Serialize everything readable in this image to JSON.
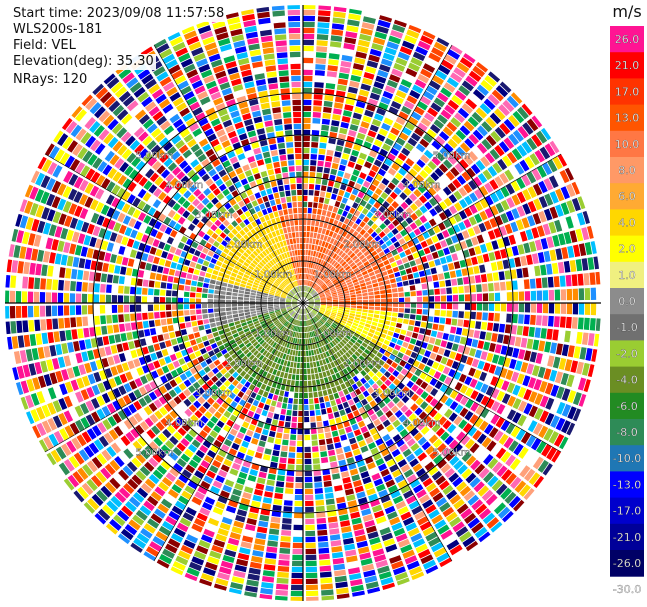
{
  "header": {
    "start_time": "Start time: 2023/09/08 11:57:58",
    "instrument": "WLS200s-181",
    "field": "Field: VEL",
    "elevation": "Elevation(deg): 35.30",
    "nrays": "NRays: 120"
  },
  "colorbar": {
    "unit": "m/s",
    "tick_labels": [
      "26.0",
      "21.0",
      "17.0",
      "13.0",
      "10.0",
      "8.0",
      "6.0",
      "4.0",
      "2.0",
      "1.0",
      "0.0",
      "-1.0",
      "-2.0",
      "-4.0",
      "-6.0",
      "-8.0",
      "-10.0",
      "-13.0",
      "-17.0",
      "-21.0",
      "-26.0",
      "-30.0"
    ],
    "colors": [
      "#ff1493",
      "#ff0000",
      "#ff3300",
      "#ff5500",
      "#ff7744",
      "#ff9966",
      "#ffaa33",
      "#ffd700",
      "#ffff00",
      "#f0f080",
      "#8c8c8c",
      "#707070",
      "#9acd32",
      "#6b8e23",
      "#228b22",
      "#2e8b57",
      "#1f77b4",
      "#0000ff",
      "#0000cc",
      "#000099",
      "#000066"
    ]
  },
  "range_ring_labels": [
    {
      "text": "1.00km"
    },
    {
      "text": "2.00km"
    },
    {
      "text": "3.00km"
    },
    {
      "text": "4.00km"
    },
    {
      "text": "5.00km"
    }
  ],
  "chart_data": {
    "type": "ppi",
    "field": "VEL",
    "units": "m/s",
    "nrays": 120,
    "elevation_deg": 35.3,
    "range_rings_km": [
      1,
      2,
      3,
      4,
      5
    ],
    "color_scale_boundaries": [
      -30,
      -26,
      -21,
      -17,
      -13,
      -10,
      -8,
      -6,
      -4,
      -2,
      -1,
      0,
      1,
      2,
      4,
      6,
      8,
      10,
      13,
      17,
      21,
      26
    ],
    "regions": [
      {
        "sector": "north-east",
        "range_km": [
          0.3,
          2.0
        ],
        "velocity": 9
      },
      {
        "sector": "north-west",
        "range_km": [
          0.3,
          2.0
        ],
        "velocity": 3
      },
      {
        "sector": "east",
        "range_km": [
          0.3,
          2.0
        ],
        "velocity": 2
      },
      {
        "sector": "west",
        "range_km": [
          0.3,
          2.0
        ],
        "velocity": -1.5
      },
      {
        "sector": "south",
        "range_km": [
          0.3,
          2.0
        ],
        "velocity": -5
      },
      {
        "sector": "all",
        "range_km": [
          2.2,
          5.8
        ],
        "velocity": "noise"
      }
    ]
  }
}
